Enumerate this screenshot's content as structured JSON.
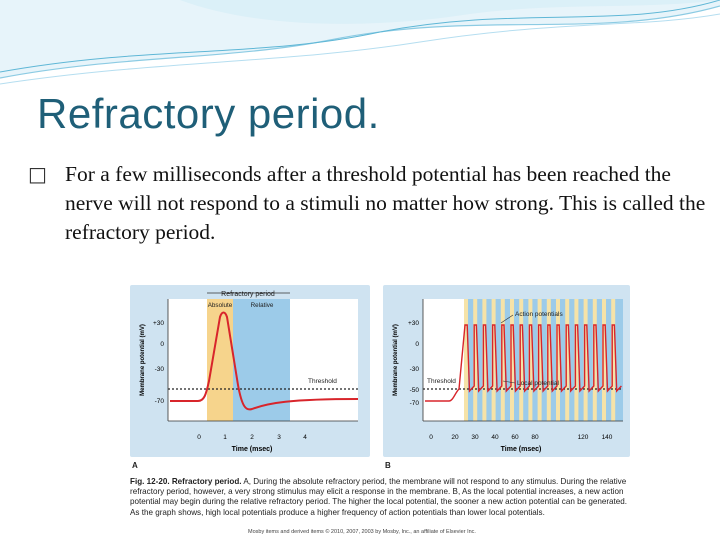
{
  "slide": {
    "title": "Refractory period.",
    "bullet_glyph": "§-square-bullet",
    "bullet_text": "For a few milliseconds after a threshold potential has been reached the nerve will not respond to a stimuli no matter how strong.  This is called the refractory period.",
    "colors": {
      "title": "#1f5f78",
      "wave": "#5fb7d6",
      "panel": "#cfe3f1",
      "trace": "#d8252b"
    }
  },
  "figure": {
    "panel_a": {
      "letter": "A",
      "refractory_label": "Refractory period",
      "absolute_label": "Absolute",
      "relative_label": "Relative",
      "threshold_label": "Threshold",
      "y_axis_label": "Membrane potential (mV)",
      "x_axis_label": "Time (msec)",
      "y_ticks": [
        "+30",
        "0",
        "-30",
        "-70"
      ],
      "x_ticks": [
        "0",
        "1",
        "2",
        "3",
        "4"
      ]
    },
    "panel_b": {
      "letter": "B",
      "action_label": "Action potentials",
      "local_label": "Local potential",
      "threshold_label": "Threshold",
      "y_axis_label": "Membrane potential (mV)",
      "x_axis_label": "Time (msec)",
      "y_ticks": [
        "+30",
        "0",
        "-30",
        "-50",
        "-70"
      ],
      "x_ticks": [
        "0",
        "20",
        "30",
        "40",
        "60",
        "80",
        "120",
        "140"
      ]
    },
    "caption_lead": "Fig. 12-20. Refractory period.",
    "caption_body": " A, During the absolute refractory period, the membrane will not respond to any stimulus. During the relative refractory period, however, a very strong stimulus may elicit a response in the membrane. B, As the local potential increases, a new action potential may begin during the relative refractory period. The higher the local potential, the sooner a new action potential can be generated. As the graph shows, high local potentials produce a higher frequency of action potentials than lower local potentials.",
    "credit": "Mosby items and derived items © 2010, 2007, 2003 by Mosby, Inc., an affiliate of Elsevier Inc."
  }
}
